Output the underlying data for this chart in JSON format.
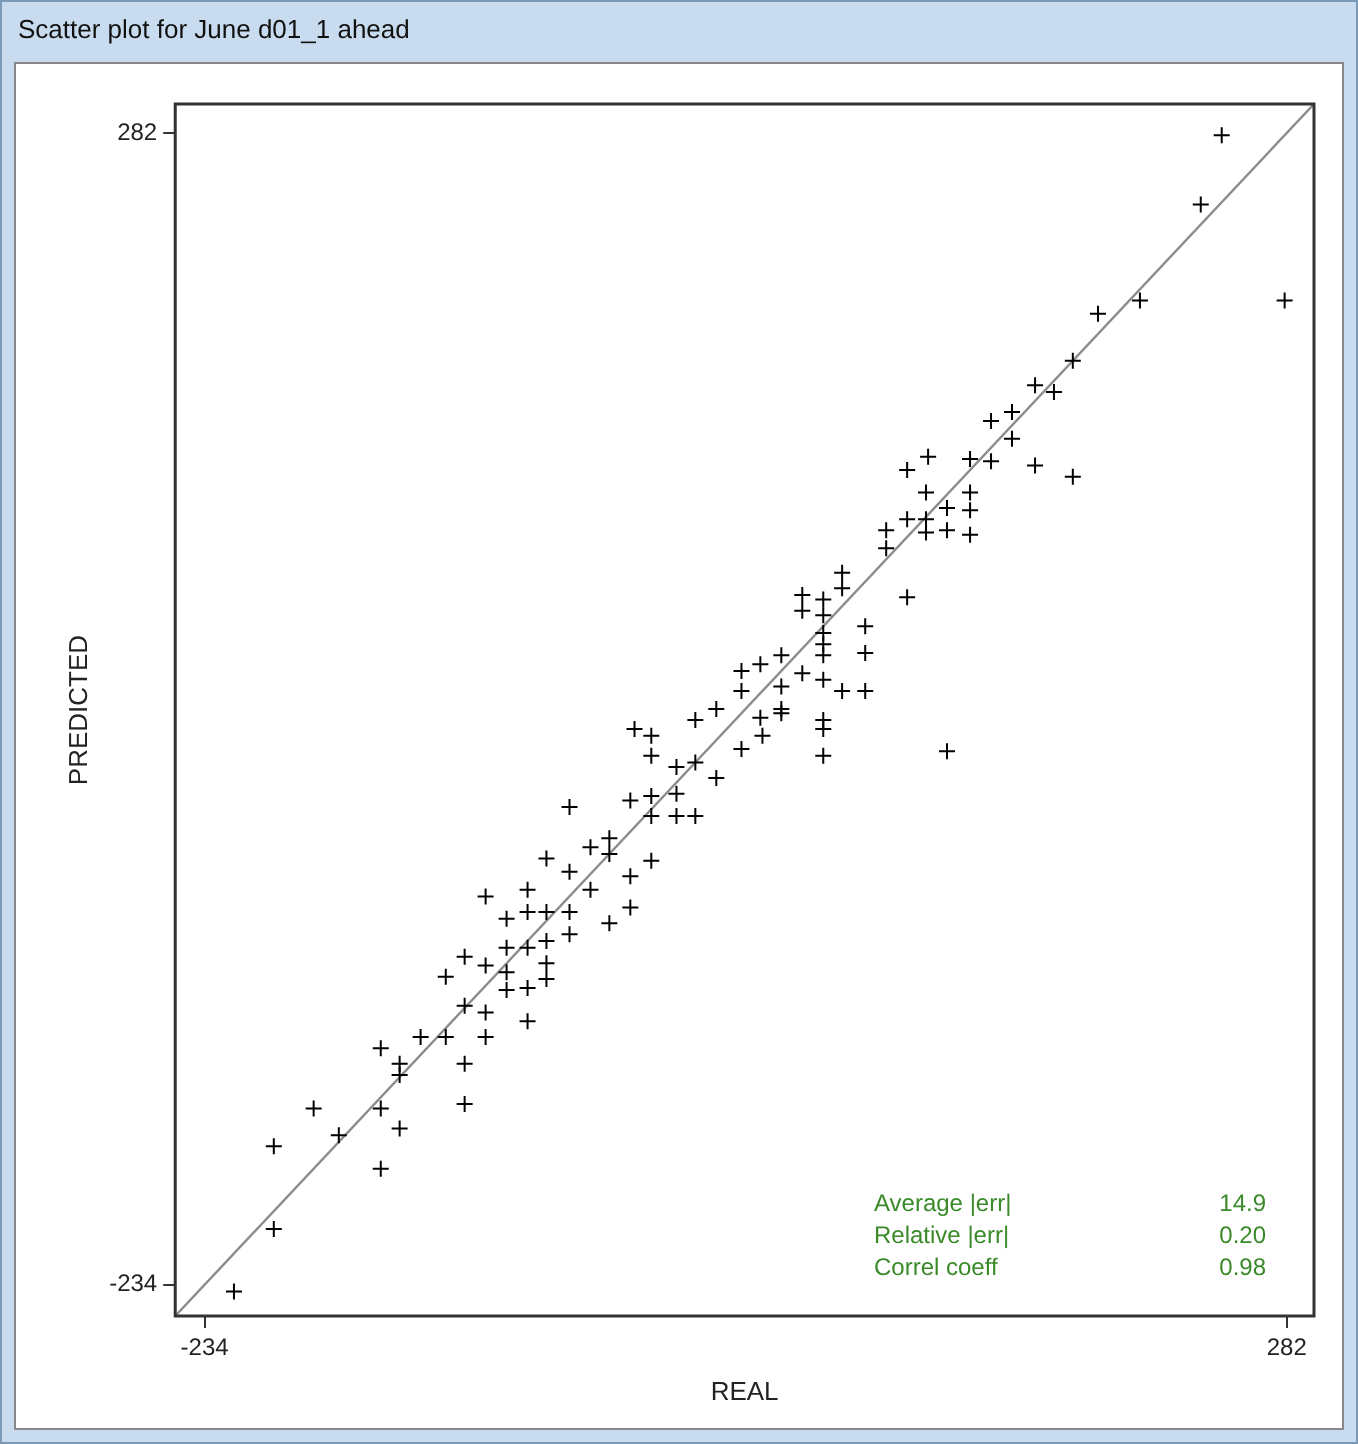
{
  "chart_data": {
    "type": "scatter",
    "title": "Scatter plot for June d01_1 ahead",
    "xlabel": "REAL",
    "ylabel": "PREDICTED",
    "xlim": [
      -248,
      295
    ],
    "ylim": [
      -248,
      295
    ],
    "xticks": [
      -234,
      282
    ],
    "yticks": [
      -234,
      282
    ],
    "grid": false,
    "legend": false,
    "marker": "cross",
    "annotations": [
      "Average |err|",
      "14.9",
      "Relative |err|",
      "0.20",
      "Correl coeff",
      "0.98"
    ],
    "series": [
      {
        "type": "scatter",
        "color": "#000000",
        "x": [
          251,
          241,
          281,
          212,
          192,
          180,
          162,
          171,
          141,
          151,
          151,
          141,
          131,
          111,
          101,
          162,
          180,
          110,
          131,
          120,
          131,
          110,
          101,
          91,
          110,
          120,
          131,
          91,
          70,
          70,
          51,
          61,
          61,
          51,
          101,
          81,
          61,
          61,
          81,
          61,
          41,
          31,
          22,
          51,
          61,
          41,
          70,
          81,
          22,
          41,
          31,
          61,
          61,
          61,
          120,
          32,
          41,
          -29,
          -21,
          -21,
          0,
          10,
          22,
          -9,
          0,
          10,
          -31,
          -21,
          -9,
          -21,
          -9,
          0,
          -60,
          -60,
          -71,
          -50,
          -41,
          -41,
          -31,
          -21,
          -50,
          -31,
          -41,
          -80,
          -71,
          -60,
          -80,
          -90,
          -100,
          -60,
          -80,
          -90,
          -71,
          -110,
          -100,
          -119,
          -90,
          -71,
          -80,
          -71,
          -110,
          -90,
          -100,
          -80,
          -119,
          -131,
          -100,
          -150,
          -141,
          -141,
          -110,
          -182,
          -150,
          -170,
          -141,
          -110,
          -201,
          -150,
          -201,
          -220
        ],
        "values": [
          281,
          250,
          207,
          207,
          201,
          180,
          169,
          166,
          153,
          157,
          145,
          135,
          136,
          137,
          131,
          133,
          128,
          121,
          121,
          114,
          113,
          109,
          109,
          104,
          103,
          104,
          102,
          96,
          85,
          78,
          75,
          73,
          66,
          68,
          74,
          61,
          58,
          53,
          49,
          48,
          48,
          44,
          41,
          40,
          37,
          34,
          32,
          32,
          32,
          24,
          20,
          19,
          15,
          3,
          5,
          12,
          22,
          15,
          12,
          3,
          19,
          24,
          6,
          -2,
          0,
          -7,
          -17,
          -15,
          -14,
          -24,
          -24,
          -24,
          -20,
          -49,
          -43,
          -38,
          -41,
          -34,
          -51,
          -44,
          -57,
          -65,
          -72,
          -57,
          -67,
          -67,
          -67,
          -70,
          -60,
          -77,
          -83,
          -83,
          -80,
          -87,
          -91,
          -96,
          -94,
          -90,
          -101,
          -97,
          -109,
          -102,
          -112,
          -116,
          -123,
          -123,
          -123,
          -128,
          -135,
          -140,
          -135,
          -155,
          -155,
          -167,
          -164,
          -153,
          -172,
          -182,
          -209,
          -237
        ]
      },
      {
        "type": "line",
        "color": "#8c8c8c",
        "x": [
          -248,
          295
        ],
        "values": [
          -248,
          295
        ],
        "marker": "none"
      }
    ]
  }
}
